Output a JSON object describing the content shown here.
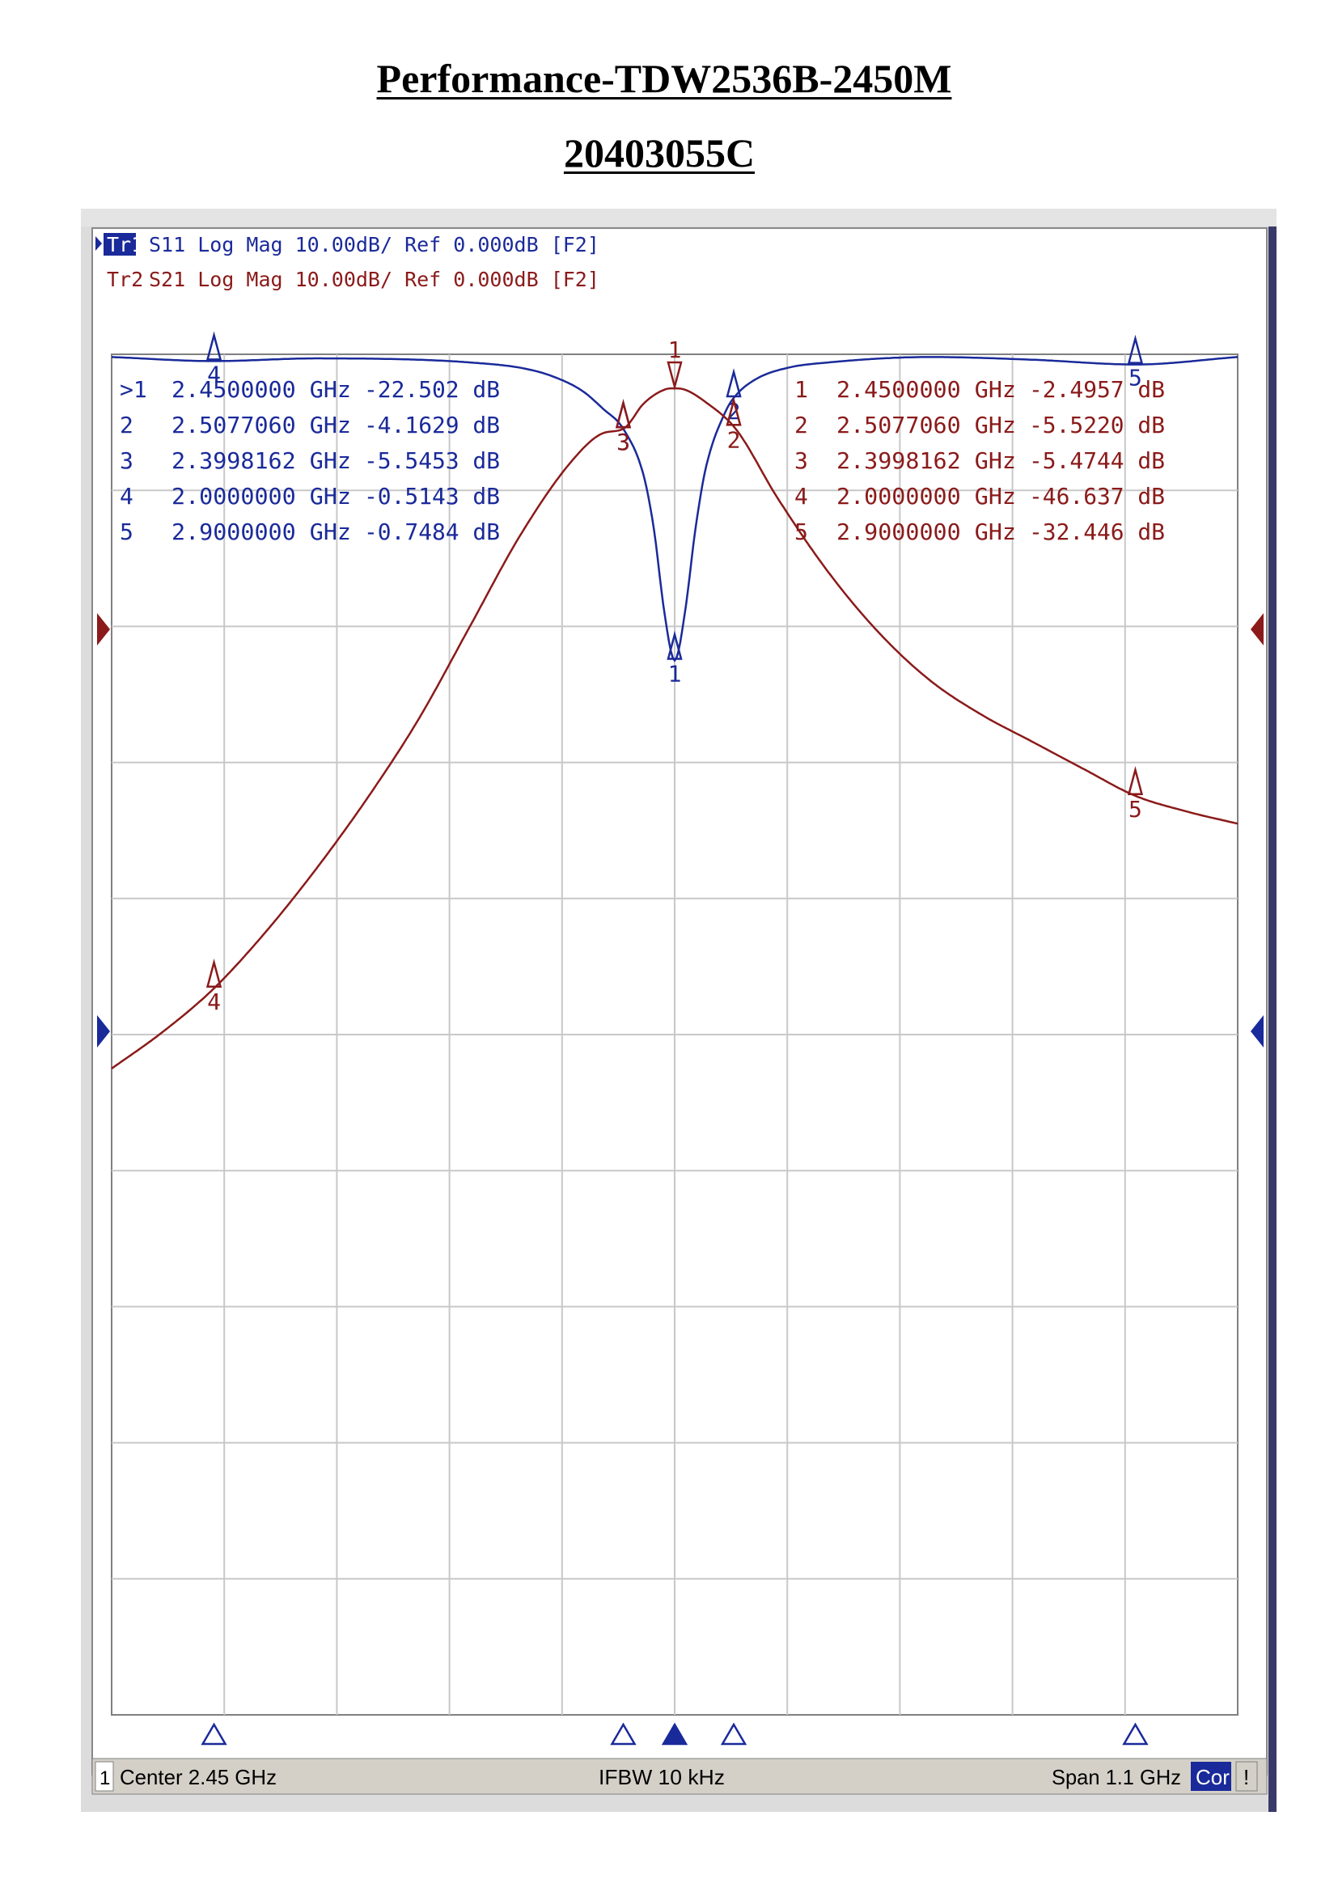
{
  "document": {
    "title": "Performance-TDW2536B-2450M",
    "subtitle": "20403055C"
  },
  "analyzer": {
    "traces": [
      {
        "id": "Tr1",
        "label": "Tr1",
        "line": "S11 Log Mag 10.00dB/ Ref 0.000dB [F2]",
        "color": "#1a2a9a",
        "active": true
      },
      {
        "id": "Tr2",
        "label": "Tr2",
        "line": "S21 Log Mag 10.00dB/ Ref 0.000dB [F2]",
        "color": "#8b1a1a",
        "active": false
      }
    ],
    "markers_tr1": [
      {
        "label": ">1",
        "freq": "2.4500000 GHz",
        "value": "-22.502 dB"
      },
      {
        "label": "2",
        "freq": "2.5077060 GHz",
        "value": "-4.1629 dB"
      },
      {
        "label": "3",
        "freq": "2.3998162 GHz",
        "value": "-5.5453 dB"
      },
      {
        "label": "4",
        "freq": "2.0000000 GHz",
        "value": "-0.5143 dB"
      },
      {
        "label": "5",
        "freq": "2.9000000 GHz",
        "value": "-0.7484 dB"
      }
    ],
    "markers_tr2": [
      {
        "label": "1",
        "freq": "2.4500000 GHz",
        "value": "-2.4957 dB"
      },
      {
        "label": "2",
        "freq": "2.5077060 GHz",
        "value": "-5.5220 dB"
      },
      {
        "label": "3",
        "freq": "2.3998162 GHz",
        "value": "-5.4744 dB"
      },
      {
        "label": "4",
        "freq": "2.0000000 GHz",
        "value": "-46.637 dB"
      },
      {
        "label": "5",
        "freq": "2.9000000 GHz",
        "value": "-32.446 dB"
      }
    ],
    "status_bar": {
      "channel": "1",
      "center": "Center 2.45 GHz",
      "ifbw": "IFBW 10 kHz",
      "span": "Span 1.1 GHz",
      "cor": "Cor",
      "flag": "!"
    }
  },
  "chart_data": {
    "type": "line",
    "x_unit": "GHz",
    "y_unit": "dB",
    "xlim": [
      1.9,
      3.0
    ],
    "ylim": [
      -100,
      0
    ],
    "reference_level": 0,
    "scale_per_div": 10,
    "grid": true,
    "series": [
      {
        "name": "S11",
        "color": "#1a2a9a",
        "x": [
          1.9,
          2.0,
          2.1,
          2.2,
          2.25,
          2.3,
          2.33,
          2.36,
          2.38,
          2.4,
          2.42,
          2.43,
          2.44,
          2.45,
          2.46,
          2.47,
          2.48,
          2.5,
          2.51,
          2.53,
          2.56,
          2.6,
          2.7,
          2.8,
          2.9,
          3.0
        ],
        "y": [
          -0.2,
          -0.5,
          -0.3,
          -0.4,
          -0.6,
          -1.0,
          -1.6,
          -2.7,
          -4.0,
          -5.5,
          -9.0,
          -13.0,
          -19.0,
          -22.5,
          -19.0,
          -13.0,
          -8.5,
          -4.16,
          -3.0,
          -1.8,
          -1.0,
          -0.6,
          -0.2,
          -0.4,
          -0.75,
          -0.2
        ]
      },
      {
        "name": "S21",
        "color": "#8b1a1a",
        "x": [
          1.9,
          1.95,
          2.0,
          2.05,
          2.1,
          2.15,
          2.2,
          2.25,
          2.3,
          2.35,
          2.38,
          2.4,
          2.42,
          2.44,
          2.45,
          2.46,
          2.48,
          2.51,
          2.55,
          2.6,
          2.65,
          2.7,
          2.75,
          2.8,
          2.85,
          2.9,
          2.95,
          3.0
        ],
        "y": [
          -52.5,
          -49.8,
          -46.6,
          -42.5,
          -37.8,
          -32.6,
          -26.8,
          -20.0,
          -13.2,
          -7.8,
          -5.8,
          -5.47,
          -3.6,
          -2.6,
          -2.5,
          -2.6,
          -3.5,
          -5.52,
          -10.5,
          -16.0,
          -20.5,
          -24.0,
          -26.5,
          -28.5,
          -30.5,
          -32.45,
          -33.6,
          -34.5
        ]
      }
    ],
    "markers": [
      {
        "name": "1",
        "x": 2.45
      },
      {
        "name": "2",
        "x": 2.507706
      },
      {
        "name": "3",
        "x": 2.3998162
      },
      {
        "name": "4",
        "x": 2.0
      },
      {
        "name": "5",
        "x": 2.9
      }
    ]
  }
}
